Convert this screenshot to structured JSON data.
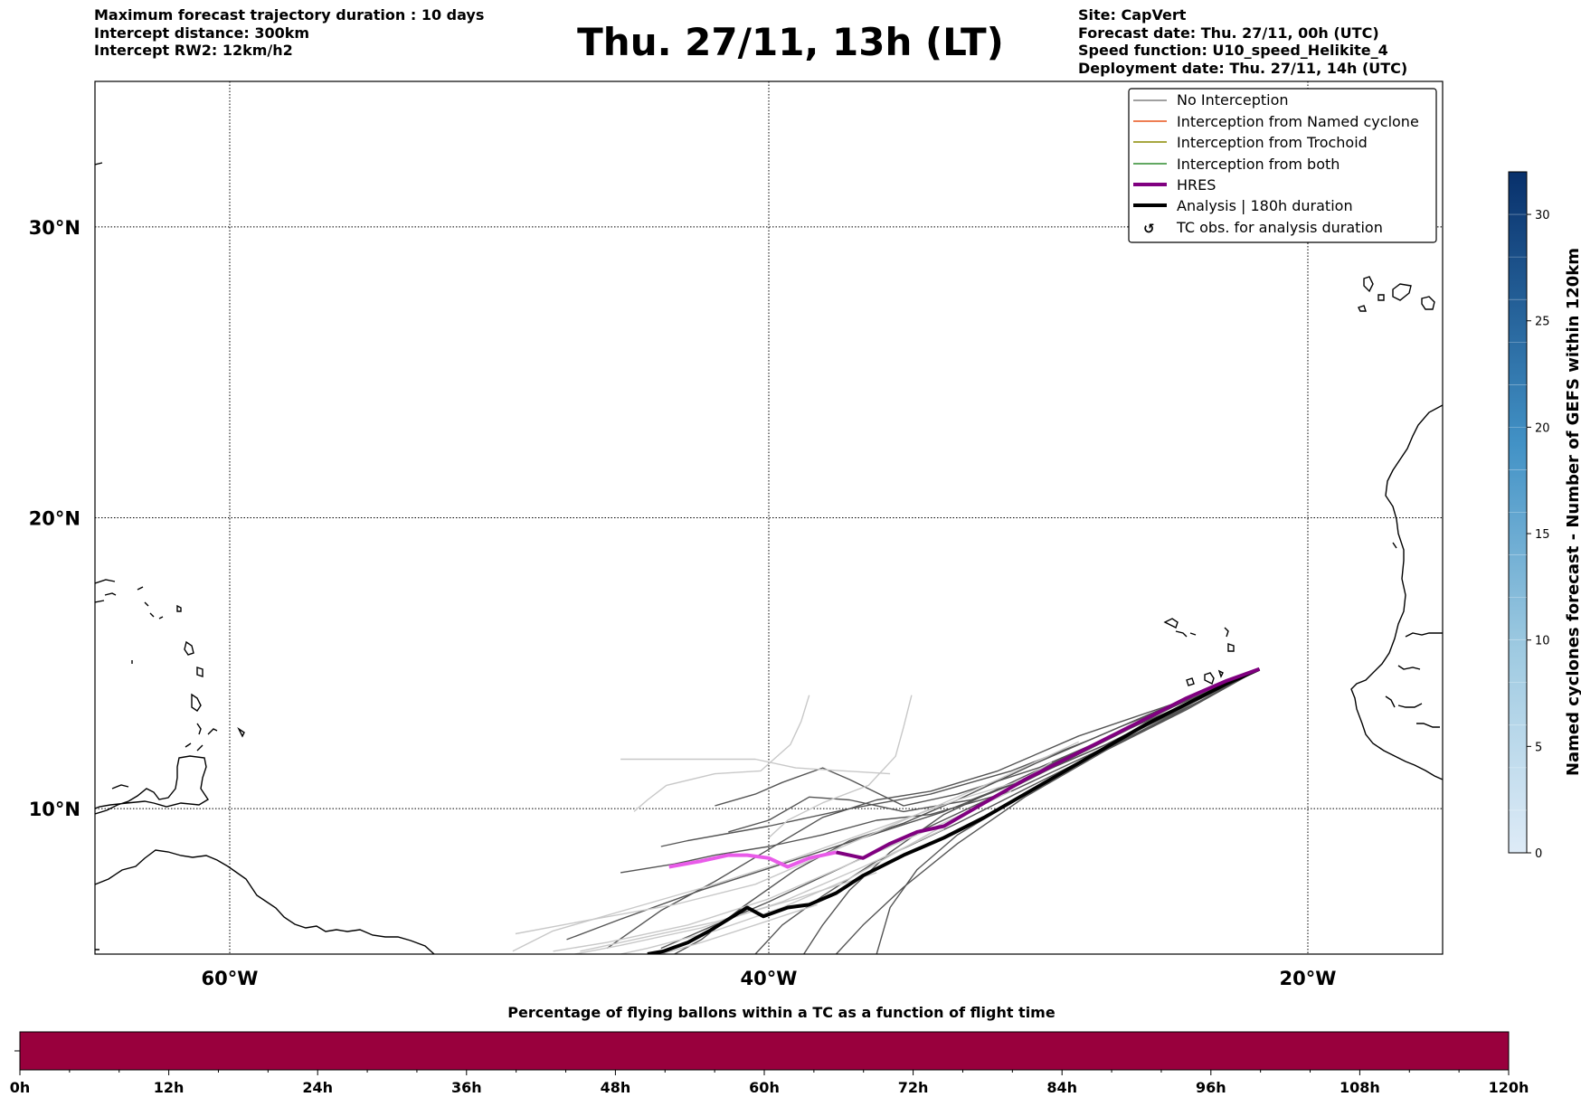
{
  "header": {
    "left_lines": [
      "Maximum forecast trajectory duration : 10 days",
      "Intercept distance: 300km",
      "Intercept RW2: 12km/h2"
    ],
    "title": "Thu. 27/11, 13h (LT)",
    "right_lines": [
      "Site: CapVert",
      "Forecast date: Thu. 27/11, 00h (UTC)",
      "Speed function: U10_speed_Helikite_4",
      "Deployment date: Thu. 27/11, 14h (UTC)"
    ]
  },
  "map": {
    "lon_range": [
      -65,
      -15
    ],
    "lat_range": [
      5,
      35
    ],
    "lon_ticks": [
      {
        "value": -60,
        "label": "60°W"
      },
      {
        "value": -40,
        "label": "40°W"
      },
      {
        "value": -20,
        "label": "20°W"
      }
    ],
    "lat_ticks": [
      {
        "value": 30,
        "label": "30°N"
      },
      {
        "value": 20,
        "label": "20°N"
      },
      {
        "value": 10,
        "label": "10°N"
      }
    ],
    "grid": true
  },
  "legend": {
    "placement": "top-right",
    "entries": [
      {
        "label": "No Interception",
        "color": "#808080",
        "style": "thin"
      },
      {
        "label": "Interception from Named cyclone",
        "color": "#e8541c",
        "style": "thin"
      },
      {
        "label": "Interception from Trochoid",
        "color": "#8a8a00",
        "style": "thin"
      },
      {
        "label": "Interception from both",
        "color": "#2e8b2e",
        "style": "thin"
      },
      {
        "label": "HRES",
        "color": "#800080",
        "style": "thick"
      },
      {
        "label": "Analysis | 180h duration",
        "color": "#000000",
        "style": "thick"
      },
      {
        "label": "TC obs. for analysis duration",
        "color": "#000000",
        "style": "symbol"
      }
    ]
  },
  "colorbar": {
    "label": "Named cyclones forecast - Number of GEFS within 120km",
    "range": [
      0,
      32
    ],
    "ticks": [
      "0",
      "5",
      "10",
      "15",
      "20",
      "25",
      "30"
    ],
    "colors": [
      "#deebf7",
      "#08306b"
    ]
  },
  "bottom_bar": {
    "title": "Percentage of flying ballons within a TC as a function of flight time",
    "color": "#99003d",
    "range_hours": [
      0,
      120
    ],
    "ticks": [
      "0h",
      "12h",
      "24h",
      "36h",
      "48h",
      "60h",
      "72h",
      "84h",
      "96h",
      "108h",
      "120h"
    ]
  },
  "chart_data": {
    "type": "line",
    "title": "Thu. 27/11, 13h (LT)",
    "xlabel": "",
    "ylabel": "",
    "xlim": [
      -65,
      -15
    ],
    "ylim": [
      5,
      35
    ],
    "series": [
      {
        "name": "HRES",
        "color": "#800080",
        "faded_color": "#e95be9",
        "points": [
          [
            -21.8,
            14.8
          ],
          [
            -23,
            14.4
          ],
          [
            -24.5,
            13.8
          ],
          [
            -26,
            13.1
          ],
          [
            -27.5,
            12.4
          ],
          [
            -29,
            11.7
          ],
          [
            -30.5,
            11.0
          ],
          [
            -32,
            10.2
          ],
          [
            -33.5,
            9.4
          ],
          [
            -34.5,
            9.2
          ],
          [
            -35.5,
            8.8
          ],
          [
            -36.5,
            8.3
          ],
          [
            -37.5,
            8.5
          ],
          [
            -38.5,
            8.3
          ],
          [
            -39.3,
            8.0
          ],
          [
            -40,
            8.3
          ],
          [
            -40.8,
            8.4
          ],
          [
            -41.5,
            8.4
          ],
          [
            -42.5,
            8.2
          ],
          [
            -43.7,
            8.0
          ]
        ]
      },
      {
        "name": "Analysis | 180h duration",
        "color": "#000000",
        "points": [
          [
            -21.8,
            14.8
          ],
          [
            -23,
            14.3
          ],
          [
            -24.5,
            13.6
          ],
          [
            -26,
            12.9
          ],
          [
            -27.5,
            12.1
          ],
          [
            -29,
            11.3
          ],
          [
            -30.5,
            10.5
          ],
          [
            -32,
            9.7
          ],
          [
            -33.5,
            9.0
          ],
          [
            -35,
            8.4
          ],
          [
            -36.5,
            7.7
          ],
          [
            -37.5,
            7.1
          ],
          [
            -38.5,
            6.7
          ],
          [
            -39.3,
            6.6
          ],
          [
            -40.2,
            6.3
          ],
          [
            -40.8,
            6.6
          ],
          [
            -41.5,
            6.2
          ],
          [
            -42.2,
            5.8
          ],
          [
            -43,
            5.4
          ],
          [
            -43.9,
            5.1
          ],
          [
            -44.5,
            5.0
          ]
        ]
      },
      {
        "name": "",
        "color": "#555555",
        "points": [
          [
            -21.8,
            14.8
          ],
          [
            -25,
            13.6
          ],
          [
            -28,
            12.4
          ],
          [
            -31,
            11.3
          ],
          [
            -34,
            10.5
          ],
          [
            -37,
            10.0
          ],
          [
            -40,
            9.4
          ],
          [
            -43,
            8.9
          ],
          [
            -44,
            8.7
          ]
        ]
      },
      {
        "name": "",
        "color": "#555555",
        "points": [
          [
            -21.8,
            14.8
          ],
          [
            -25,
            13.5
          ],
          [
            -28,
            12.1
          ],
          [
            -31,
            10.7
          ],
          [
            -34,
            9.4
          ],
          [
            -37,
            8.1
          ],
          [
            -40,
            6.8
          ],
          [
            -42,
            6.0
          ],
          [
            -44,
            5.2
          ]
        ]
      },
      {
        "name": "",
        "color": "#555555",
        "points": [
          [
            -21.8,
            14.8
          ],
          [
            -24,
            13.8
          ],
          [
            -27,
            12.6
          ],
          [
            -30,
            11.4
          ],
          [
            -33,
            10.5
          ],
          [
            -35,
            10.1
          ],
          [
            -37,
            11.0
          ],
          [
            -38,
            11.4
          ],
          [
            -39.5,
            10.9
          ],
          [
            -40.5,
            10.5
          ],
          [
            -42,
            10.1
          ]
        ]
      },
      {
        "name": "",
        "color": "#555555",
        "points": [
          [
            -21.8,
            14.8
          ],
          [
            -24,
            13.7
          ],
          [
            -27,
            12.3
          ],
          [
            -30,
            10.9
          ],
          [
            -33,
            9.5
          ],
          [
            -36,
            8.2
          ],
          [
            -38,
            7.0
          ],
          [
            -39.5,
            6.0
          ],
          [
            -40.5,
            5.0
          ]
        ]
      },
      {
        "name": "",
        "color": "#555555",
        "points": [
          [
            -21.8,
            14.8
          ],
          [
            -25,
            13.3
          ],
          [
            -28,
            11.9
          ],
          [
            -31,
            10.6
          ],
          [
            -34,
            9.8
          ],
          [
            -36,
            9.6
          ],
          [
            -38,
            9.1
          ],
          [
            -40,
            8.7
          ],
          [
            -42,
            8.4
          ],
          [
            -43.5,
            8.1
          ],
          [
            -45.5,
            7.8
          ]
        ]
      },
      {
        "name": "",
        "color": "#555555",
        "points": [
          [
            -21.8,
            14.8
          ],
          [
            -24.5,
            13.4
          ],
          [
            -27.5,
            12.0
          ],
          [
            -30.5,
            10.4
          ],
          [
            -33,
            8.8
          ],
          [
            -35,
            7.3
          ],
          [
            -36.5,
            6.0
          ],
          [
            -37.5,
            5.0
          ]
        ]
      },
      {
        "name": "",
        "color": "#555555",
        "points": [
          [
            -21.8,
            14.8
          ],
          [
            -25,
            13.6
          ],
          [
            -28.5,
            12.5
          ],
          [
            -31.5,
            11.3
          ],
          [
            -34,
            10.6
          ],
          [
            -36,
            10.3
          ],
          [
            -38,
            9.7
          ],
          [
            -40,
            8.6
          ],
          [
            -42,
            7.5
          ],
          [
            -44,
            6.5
          ],
          [
            -46,
            5.2
          ]
        ]
      },
      {
        "name": "",
        "color": "#555555",
        "points": [
          [
            -21.8,
            14.8
          ],
          [
            -24,
            13.9
          ],
          [
            -27,
            12.8
          ],
          [
            -30,
            11.6
          ],
          [
            -33,
            10.3
          ],
          [
            -35,
            9.5
          ],
          [
            -37,
            8.9
          ],
          [
            -39,
            7.9
          ],
          [
            -41,
            6.6
          ],
          [
            -42.5,
            5.5
          ],
          [
            -43.5,
            5.0
          ]
        ]
      },
      {
        "name": "",
        "color": "#555555",
        "points": [
          [
            -21.8,
            14.8
          ],
          [
            -25,
            13.2
          ],
          [
            -28,
            11.8
          ],
          [
            -31,
            10.2
          ],
          [
            -33,
            9.1
          ],
          [
            -34.5,
            7.9
          ],
          [
            -35.5,
            6.6
          ],
          [
            -36,
            5.0
          ]
        ]
      },
      {
        "name": "",
        "color": "#555555",
        "points": [
          [
            -21.8,
            14.8
          ],
          [
            -24.5,
            13.6
          ],
          [
            -27.5,
            12.2
          ],
          [
            -30.5,
            11.0
          ],
          [
            -33.5,
            9.9
          ],
          [
            -36.5,
            9.0
          ],
          [
            -39.5,
            8.1
          ],
          [
            -42.5,
            7.2
          ],
          [
            -45.5,
            6.2
          ],
          [
            -47.5,
            5.5
          ]
        ]
      },
      {
        "name": "",
        "color": "#555555",
        "points": [
          [
            -21.8,
            14.8
          ],
          [
            -24,
            13.7
          ],
          [
            -27,
            12.4
          ],
          [
            -30,
            11.2
          ],
          [
            -32.5,
            10.3
          ],
          [
            -35,
            9.9
          ],
          [
            -37,
            10.3
          ],
          [
            -38.5,
            10.4
          ],
          [
            -40,
            9.6
          ],
          [
            -41.5,
            9.2
          ]
        ]
      },
      {
        "name": "",
        "color": "#555555",
        "points": [
          [
            -21.8,
            14.8
          ],
          [
            -25,
            13.5
          ],
          [
            -28,
            12.2
          ],
          [
            -31,
            10.9
          ],
          [
            -33.5,
            9.8
          ],
          [
            -35.5,
            8.5
          ],
          [
            -37,
            7.2
          ],
          [
            -38,
            6.0
          ],
          [
            -38.7,
            5.0
          ]
        ]
      },
      {
        "name": "",
        "color": "#c8c8c8",
        "points": [
          [
            -38.5,
            13.9
          ],
          [
            -38.8,
            13.0
          ],
          [
            -39.2,
            12.2
          ],
          [
            -40.3,
            11.3
          ],
          [
            -42,
            11.2
          ],
          [
            -43.8,
            10.8
          ],
          [
            -44.5,
            10.3
          ],
          [
            -45,
            9.9
          ]
        ]
      },
      {
        "name": "",
        "color": "#c8c8c8",
        "points": [
          [
            -35.5,
            11.2
          ],
          [
            -37.2,
            11.3
          ],
          [
            -39,
            11.4
          ],
          [
            -40.5,
            11.7
          ],
          [
            -42.5,
            11.7
          ],
          [
            -44,
            11.7
          ],
          [
            -45.5,
            11.7
          ]
        ]
      },
      {
        "name": "",
        "color": "#c8c8c8",
        "points": [
          [
            -34.7,
            13.9
          ],
          [
            -35,
            12.8
          ],
          [
            -35.3,
            11.8
          ],
          [
            -36.3,
            10.8
          ],
          [
            -38,
            10.2
          ],
          [
            -39.3,
            9.6
          ],
          [
            -40,
            9.0
          ]
        ]
      },
      {
        "name": "",
        "color": "#c8c8c8",
        "points": [
          [
            -30.5,
            11.0
          ],
          [
            -33,
            10.3
          ],
          [
            -36,
            9.3
          ],
          [
            -39,
            8.3
          ],
          [
            -42,
            7.4
          ],
          [
            -45,
            6.6
          ],
          [
            -48,
            5.8
          ],
          [
            -49.5,
            5.1
          ]
        ]
      },
      {
        "name": "",
        "color": "#c8c8c8",
        "points": [
          [
            -28.5,
            12.3
          ],
          [
            -31.5,
            11.0
          ],
          [
            -34.5,
            9.8
          ],
          [
            -37.5,
            8.6
          ],
          [
            -40.5,
            7.4
          ],
          [
            -43.5,
            6.7
          ],
          [
            -46.5,
            6.2
          ],
          [
            -49.4,
            5.7
          ]
        ]
      },
      {
        "name": "",
        "color": "#c8c8c8",
        "points": [
          [
            -31,
            10.6
          ],
          [
            -34,
            9.3
          ],
          [
            -37,
            8.1
          ],
          [
            -40,
            6.9
          ],
          [
            -43,
            6.0
          ],
          [
            -46,
            5.4
          ],
          [
            -48,
            5.1
          ]
        ]
      },
      {
        "name": "",
        "color": "#c8c8c8",
        "points": [
          [
            -33.5,
            9.3
          ],
          [
            -36.5,
            8.0
          ],
          [
            -39.5,
            6.8
          ],
          [
            -42.5,
            5.9
          ],
          [
            -45.5,
            5.3
          ],
          [
            -47.2,
            5.0
          ]
        ]
      },
      {
        "name": "",
        "color": "#c8c8c8",
        "points": [
          [
            -36,
            7.8
          ],
          [
            -39,
            6.9
          ],
          [
            -42,
            6.1
          ],
          [
            -45,
            5.5
          ],
          [
            -47,
            5.1
          ]
        ]
      },
      {
        "name": "",
        "color": "#c8c8c8",
        "points": [
          [
            -38.2,
            6.7
          ],
          [
            -40.5,
            6.0
          ],
          [
            -42.5,
            5.4
          ],
          [
            -44,
            5.0
          ]
        ]
      },
      {
        "name": "",
        "color": "#c8c8c8",
        "points": [
          [
            -29.5,
            11.6
          ],
          [
            -32,
            10.2
          ],
          [
            -34.5,
            8.9
          ],
          [
            -37,
            7.6
          ],
          [
            -39.5,
            6.6
          ],
          [
            -42,
            5.8
          ],
          [
            -44.5,
            5.2
          ],
          [
            -45.5,
            5.0
          ]
        ]
      }
    ],
    "faded_hres_from_lon": -38.2
  }
}
